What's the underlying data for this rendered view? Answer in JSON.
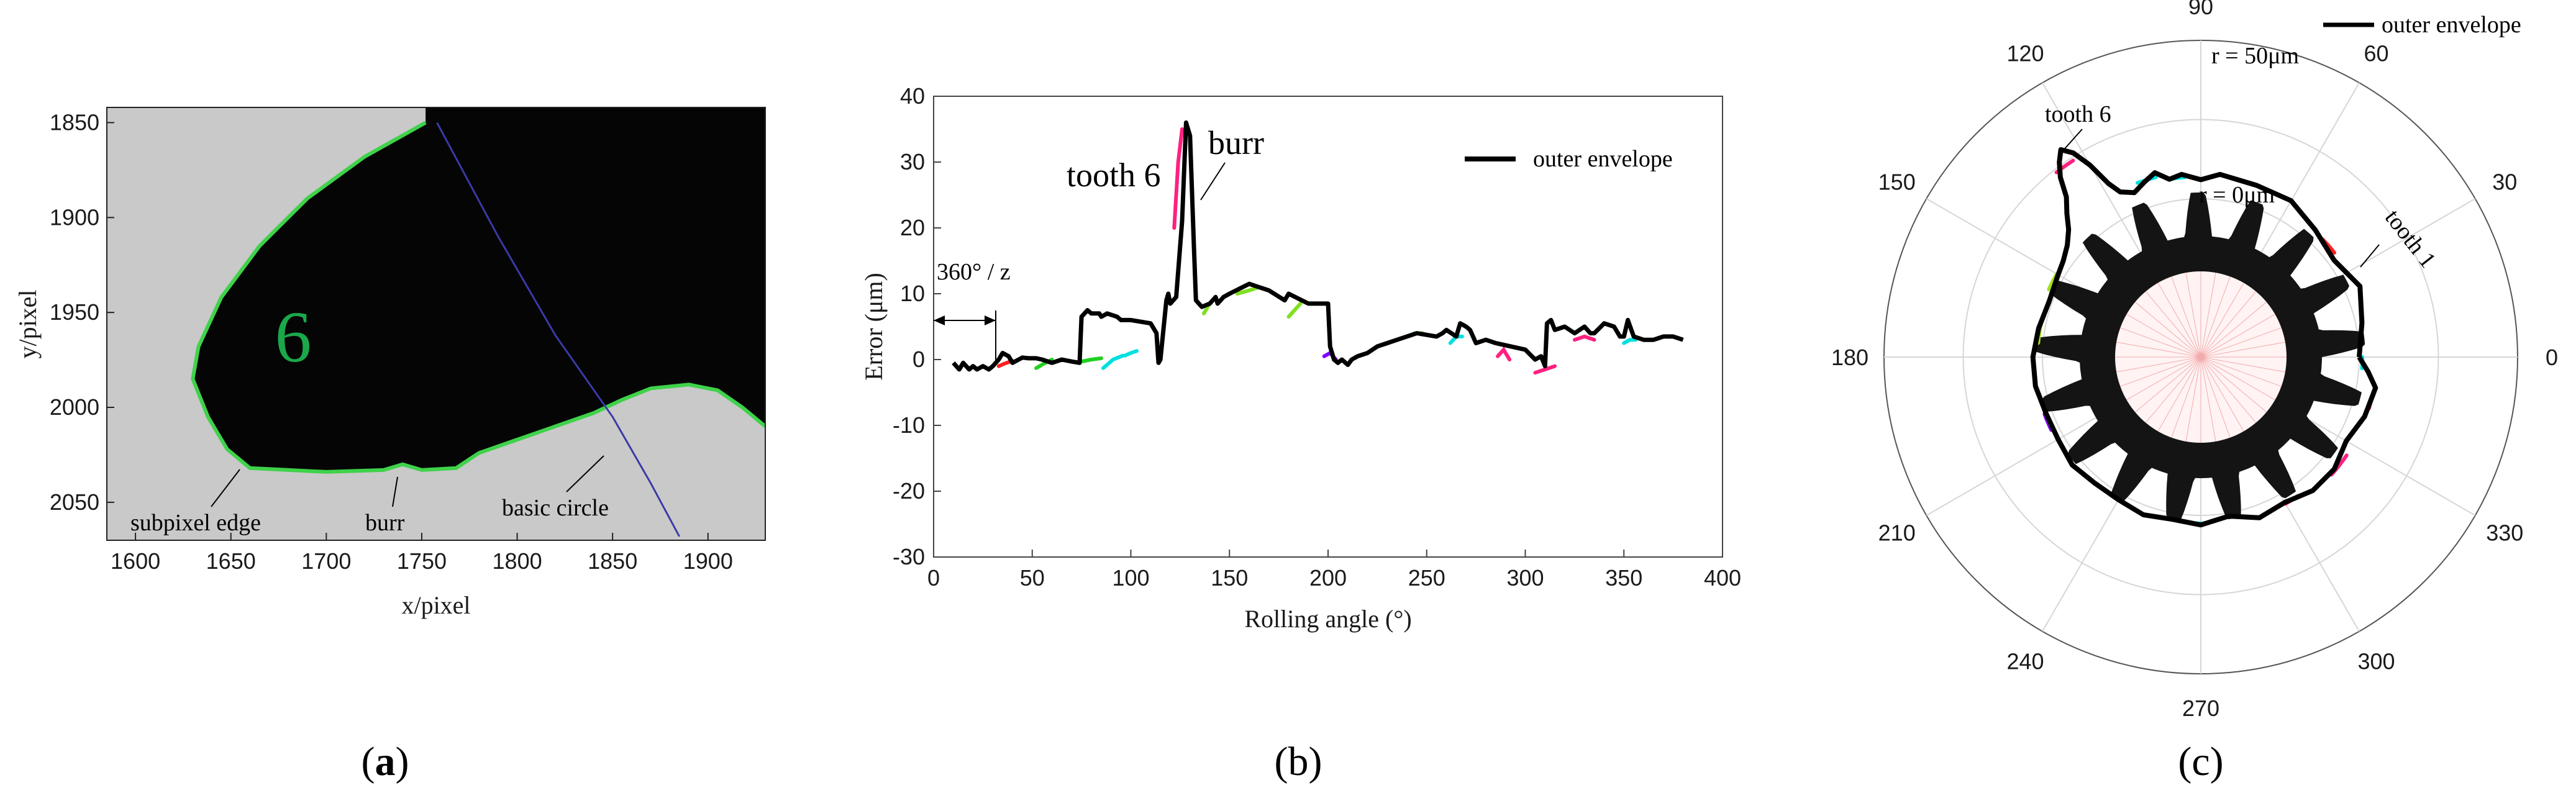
{
  "chart_data": [
    {
      "panel": "a",
      "type": "image",
      "xlabel": "x/pixel",
      "ylabel": "y/pixel",
      "xlim": [
        1585,
        1930
      ],
      "ylim": [
        2070,
        1842
      ],
      "xticks": [
        1600,
        1650,
        1700,
        1750,
        1800,
        1850,
        1900
      ],
      "yticks": [
        1850,
        1900,
        1950,
        2000,
        2050
      ],
      "tooth_number": "6",
      "annotations": [
        "subpixel edge",
        "burr",
        "basic circle"
      ],
      "edge_points": [
        [
          1752,
          1850
        ],
        [
          1720,
          1868
        ],
        [
          1690,
          1890
        ],
        [
          1665,
          1915
        ],
        [
          1645,
          1942
        ],
        [
          1633,
          1968
        ],
        [
          1630,
          1985
        ],
        [
          1638,
          2005
        ],
        [
          1648,
          2022
        ],
        [
          1660,
          2032
        ],
        [
          1700,
          2034
        ],
        [
          1730,
          2033
        ],
        [
          1740,
          2030
        ],
        [
          1750,
          2033
        ],
        [
          1768,
          2032
        ],
        [
          1780,
          2024
        ],
        [
          1800,
          2017
        ],
        [
          1820,
          2010
        ],
        [
          1840,
          2003
        ],
        [
          1855,
          1996
        ],
        [
          1870,
          1990
        ],
        [
          1890,
          1988
        ],
        [
          1905,
          1991
        ],
        [
          1918,
          2000
        ],
        [
          1930,
          2010
        ]
      ],
      "basic_circle_points": [
        [
          1758,
          1850
        ],
        [
          1790,
          1910
        ],
        [
          1820,
          1962
        ],
        [
          1850,
          2005
        ],
        [
          1870,
          2040
        ],
        [
          1885,
          2068
        ]
      ]
    },
    {
      "panel": "b",
      "type": "line",
      "xlabel": "Rolling angle (°)",
      "ylabel": "Error (μm)",
      "xlim": [
        0,
        400
      ],
      "ylim": [
        -30,
        40
      ],
      "xticks": [
        0,
        50,
        100,
        150,
        200,
        250,
        300,
        350,
        400
      ],
      "yticks": [
        -30,
        -20,
        -10,
        0,
        10,
        20,
        30,
        40
      ],
      "legend": {
        "label": "outer envelope",
        "position": "top-right"
      },
      "annotations": [
        "tooth 6",
        "burr",
        "360° / z"
      ],
      "series": [
        {
          "name": "outer envelope",
          "x": [
            10,
            13,
            15,
            18,
            20,
            22,
            25,
            28,
            30,
            33,
            35,
            38,
            40,
            45,
            48,
            52,
            55,
            60,
            65,
            70,
            74,
            75,
            78,
            80,
            84,
            85,
            88,
            93,
            95,
            100,
            110,
            113,
            114,
            115,
            118,
            119,
            120,
            123,
            126,
            128,
            130,
            132,
            133,
            136,
            140,
            143,
            144,
            147,
            150,
            160,
            165,
            170,
            178,
            180,
            190,
            200,
            201,
            203,
            205,
            207,
            210,
            212,
            215,
            220,
            225,
            230,
            235,
            245,
            255,
            258,
            260,
            265,
            267,
            270,
            272,
            275,
            280,
            285,
            300,
            305,
            308,
            310,
            311,
            313,
            315,
            320,
            325,
            330,
            333,
            335,
            340,
            345,
            348,
            350,
            352,
            355,
            360,
            365,
            370,
            375,
            380
          ],
          "y": [
            -0.5,
            -1.5,
            -0.5,
            -1.5,
            -1,
            -1.5,
            -1,
            -1.5,
            -1,
            0,
            1,
            0.5,
            -0.5,
            0.3,
            0.2,
            0.2,
            0,
            -0.5,
            0,
            -0.3,
            -0.5,
            6.5,
            7.5,
            7,
            7,
            6.5,
            7,
            6.5,
            6,
            6,
            5.5,
            4,
            -0.5,
            0,
            9,
            10,
            8.5,
            9.5,
            21,
            36,
            34,
            17,
            9,
            8,
            8.5,
            9.5,
            8.5,
            9.5,
            10,
            11.5,
            11,
            10.5,
            9,
            10,
            8.5,
            8.5,
            2,
            0,
            -0.5,
            0,
            -0.8,
            0,
            0.5,
            1,
            2,
            2.5,
            3,
            4,
            3.5,
            4,
            4.5,
            3.5,
            5.5,
            5,
            4.5,
            2.5,
            3,
            2.5,
            1.5,
            0,
            0.5,
            -1,
            5.5,
            6,
            4.5,
            5,
            4,
            5,
            4,
            4,
            5.5,
            5,
            3.5,
            3.5,
            6,
            3.5,
            3,
            3,
            3.5,
            3.5,
            3
          ]
        }
      ],
      "colored_segments": [
        {
          "color": "#ff2020",
          "x": [
            33,
            36,
            40
          ],
          "y": [
            -1,
            -0.6,
            -0.2
          ]
        },
        {
          "color": "#20d020",
          "x": [
            52,
            56,
            60
          ],
          "y": [
            -1.3,
            -0.6,
            0
          ]
        },
        {
          "color": "#20d020",
          "x": [
            75,
            80,
            85
          ],
          "y": [
            -0.3,
            0,
            0.2
          ]
        },
        {
          "color": "#00e0e0",
          "x": [
            86,
            91,
            96
          ],
          "y": [
            -1.3,
            0,
            0.6
          ]
        },
        {
          "color": "#00e0e0",
          "x": [
            97,
            100,
            103
          ],
          "y": [
            0.6,
            1,
            1.3
          ]
        },
        {
          "color": "#ff2080",
          "x": [
            122,
            124,
            126
          ],
          "y": [
            20,
            30,
            35
          ]
        },
        {
          "color": "#80e020",
          "x": [
            137,
            140,
            143
          ],
          "y": [
            7,
            8.5,
            9.5
          ]
        },
        {
          "color": "#80e020",
          "x": [
            154,
            160,
            165
          ],
          "y": [
            10,
            10.5,
            11
          ]
        },
        {
          "color": "#80e020",
          "x": [
            180,
            183,
            186
          ],
          "y": [
            6.5,
            7.5,
            8.5
          ]
        },
        {
          "color": "#8000ff",
          "x": [
            198,
            201,
            204
          ],
          "y": [
            0.5,
            1,
            0
          ]
        },
        {
          "color": "#80e020",
          "x": [
            240,
            244,
            248
          ],
          "y": [
            3.5,
            4,
            4
          ]
        },
        {
          "color": "#00e0e0",
          "x": [
            262,
            265,
            268
          ],
          "y": [
            2.5,
            3.5,
            3.5
          ]
        },
        {
          "color": "#ff2080",
          "x": [
            286,
            289,
            292
          ],
          "y": [
            0.5,
            1.5,
            0
          ]
        },
        {
          "color": "#ff2080",
          "x": [
            305,
            310,
            315
          ],
          "y": [
            -2,
            -1.5,
            -1
          ]
        },
        {
          "color": "#ff2080",
          "x": [
            325,
            330,
            335
          ],
          "y": [
            3,
            3.5,
            3
          ]
        },
        {
          "color": "#00e0e0",
          "x": [
            350,
            353,
            356
          ],
          "y": [
            2.5,
            3,
            3
          ]
        }
      ]
    },
    {
      "panel": "c",
      "type": "polar",
      "angle_ticks": [
        0,
        30,
        60,
        90,
        120,
        150,
        180,
        210,
        240,
        270,
        300,
        330
      ],
      "legend": {
        "label": "outer envelope",
        "position": "top-right"
      },
      "annotations": [
        "r = 50μm",
        "r = 0μm",
        "tooth 6",
        "tooth 1"
      ],
      "envelope_angles": [
        0,
        12,
        24,
        36,
        48,
        60,
        72,
        84,
        90,
        96,
        100,
        104,
        108,
        112,
        116,
        118,
        120,
        122,
        124,
        126,
        128,
        130,
        133,
        136,
        140,
        145,
        150,
        160,
        170,
        180,
        190,
        200,
        210,
        220,
        230,
        240,
        250,
        260,
        270,
        280,
        290,
        300,
        310,
        320,
        330,
        340,
        350,
        355,
        360
      ],
      "envelope_radius_frac": [
        0.5,
        0.52,
        0.55,
        0.52,
        0.54,
        0.57,
        0.57,
        0.58,
        0.56,
        0.58,
        0.57,
        0.6,
        0.58,
        0.56,
        0.58,
        0.62,
        0.7,
        0.76,
        0.79,
        0.76,
        0.72,
        0.66,
        0.62,
        0.58,
        0.55,
        0.53,
        0.52,
        0.51,
        0.52,
        0.53,
        0.53,
        0.52,
        0.52,
        0.53,
        0.52,
        0.52,
        0.53,
        0.52,
        0.53,
        0.51,
        0.54,
        0.53,
        0.55,
        0.55,
        0.53,
        0.55,
        0.56,
        0.53,
        0.5
      ],
      "gear_teeth": 17
    }
  ],
  "panel_labels": [
    "(a)",
    "(b)",
    "(c)"
  ]
}
